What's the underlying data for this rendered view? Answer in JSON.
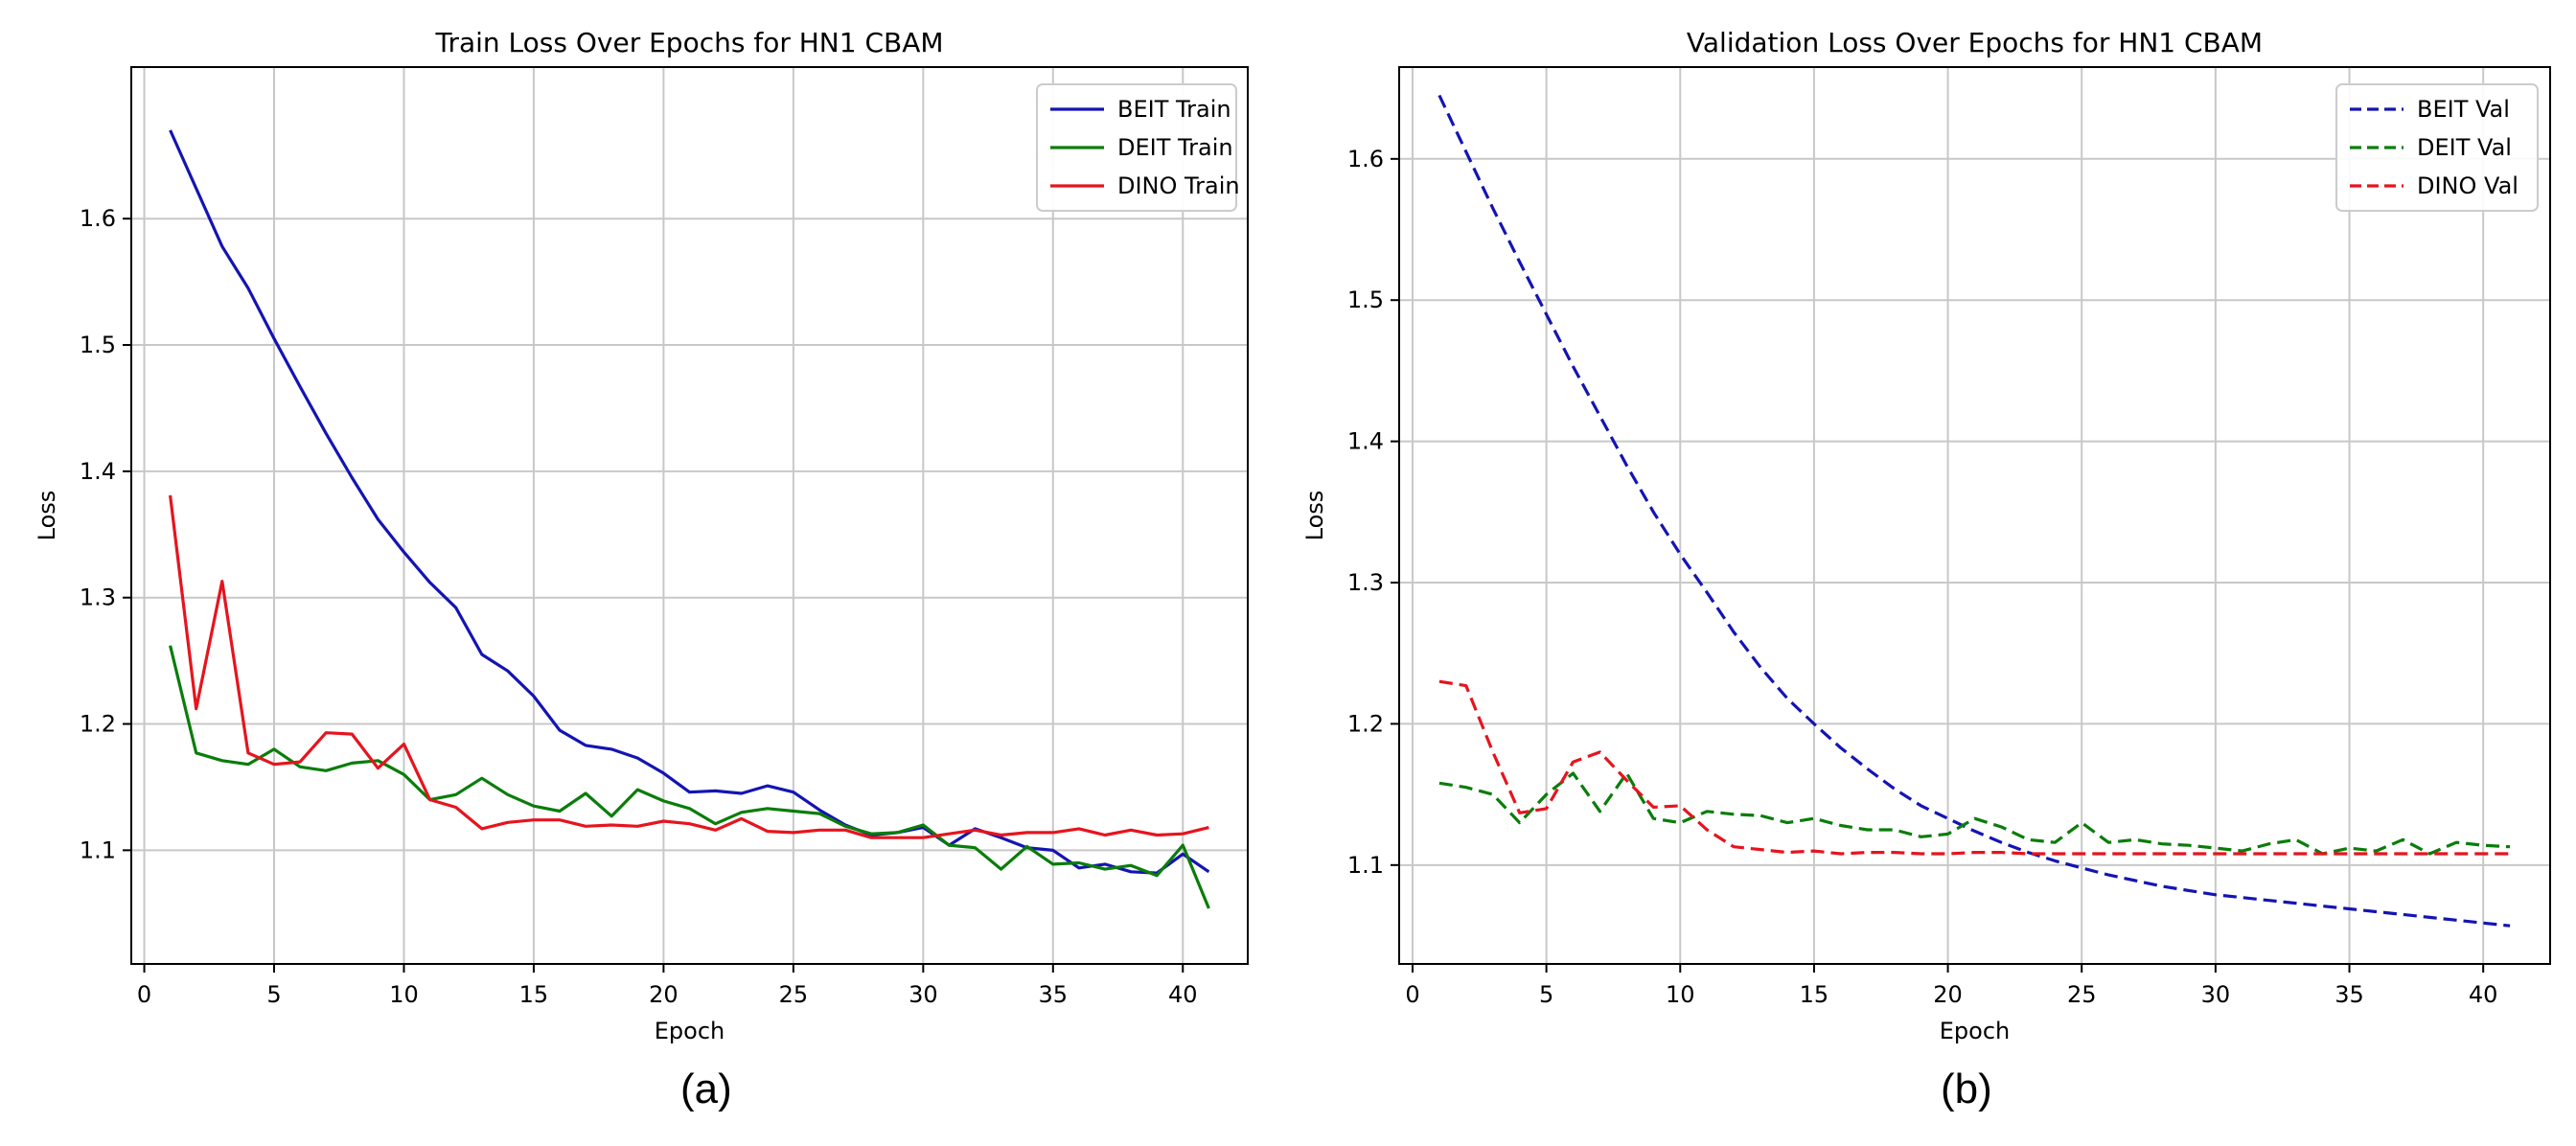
{
  "colors": {
    "blue": "#1414b4",
    "green": "#0a7d0a",
    "red": "#e6141e",
    "grid": "#c8c8c8",
    "axis": "#000000"
  },
  "panels": [
    {
      "caption": "(a)"
    },
    {
      "caption": "(b)"
    }
  ],
  "chart_data": [
    {
      "type": "line",
      "title": "Train Loss Over Epochs for HN1 CBAM",
      "xlabel": "Epoch",
      "ylabel": "Loss",
      "xlim": [
        -0.5,
        42.5
      ],
      "ylim": [
        1.01,
        1.72
      ],
      "xticks": [
        0,
        5,
        10,
        15,
        20,
        25,
        30,
        35,
        40
      ],
      "yticks": [
        1.1,
        1.2,
        1.3,
        1.4,
        1.5,
        1.6
      ],
      "ytick_labels": [
        "1.1",
        "1.2",
        "1.3",
        "1.4",
        "1.5",
        "1.6"
      ],
      "grid": true,
      "legend_position": "top-right",
      "x": [
        1,
        2,
        3,
        4,
        5,
        6,
        7,
        8,
        9,
        10,
        11,
        12,
        13,
        14,
        15,
        16,
        17,
        18,
        19,
        20,
        21,
        22,
        23,
        24,
        25,
        26,
        27,
        28,
        29,
        30,
        31,
        32,
        33,
        34,
        35,
        36,
        37,
        38,
        39,
        40,
        41
      ],
      "series": [
        {
          "name": "BEIT Train",
          "color": "blue",
          "dash": "solid",
          "values": [
            1.67,
            1.624,
            1.578,
            1.545,
            1.505,
            1.467,
            1.43,
            1.395,
            1.362,
            1.336,
            1.312,
            1.292,
            1.255,
            1.242,
            1.222,
            1.195,
            1.183,
            1.18,
            1.173,
            1.161,
            1.146,
            1.147,
            1.145,
            1.151,
            1.146,
            1.132,
            1.12,
            1.112,
            1.114,
            1.118,
            1.104,
            1.117,
            1.11,
            1.102,
            1.1,
            1.086,
            1.089,
            1.083,
            1.082,
            1.097,
            1.083
          ]
        },
        {
          "name": "DEIT Train",
          "color": "green",
          "dash": "solid",
          "values": [
            1.262,
            1.177,
            1.171,
            1.168,
            1.18,
            1.166,
            1.163,
            1.169,
            1.171,
            1.16,
            1.14,
            1.144,
            1.157,
            1.144,
            1.135,
            1.131,
            1.145,
            1.127,
            1.148,
            1.139,
            1.133,
            1.121,
            1.13,
            1.133,
            1.131,
            1.129,
            1.119,
            1.113,
            1.114,
            1.12,
            1.104,
            1.102,
            1.085,
            1.103,
            1.089,
            1.09,
            1.085,
            1.088,
            1.08,
            1.104,
            1.054
          ]
        },
        {
          "name": "DINO Train",
          "color": "red",
          "dash": "solid",
          "values": [
            1.381,
            1.212,
            1.313,
            1.177,
            1.168,
            1.17,
            1.193,
            1.192,
            1.165,
            1.184,
            1.14,
            1.134,
            1.117,
            1.122,
            1.124,
            1.124,
            1.119,
            1.12,
            1.119,
            1.123,
            1.121,
            1.116,
            1.125,
            1.115,
            1.114,
            1.116,
            1.116,
            1.11,
            1.11,
            1.11,
            1.113,
            1.116,
            1.112,
            1.114,
            1.114,
            1.117,
            1.112,
            1.116,
            1.112,
            1.113,
            1.118
          ]
        }
      ]
    },
    {
      "type": "line",
      "title": "Validation Loss Over Epochs for HN1 CBAM",
      "xlabel": "Epoch",
      "ylabel": "Loss",
      "xlim": [
        -0.5,
        42.5
      ],
      "ylim": [
        1.03,
        1.665
      ],
      "xticks": [
        0,
        5,
        10,
        15,
        20,
        25,
        30,
        35,
        40
      ],
      "yticks": [
        1.1,
        1.2,
        1.3,
        1.4,
        1.5,
        1.6
      ],
      "ytick_labels": [
        "1.1",
        "1.2",
        "1.3",
        "1.4",
        "1.5",
        "1.6"
      ],
      "grid": true,
      "legend_position": "top-right",
      "x": [
        1,
        2,
        3,
        4,
        5,
        6,
        7,
        8,
        9,
        10,
        11,
        12,
        13,
        14,
        15,
        16,
        17,
        18,
        19,
        20,
        21,
        22,
        23,
        24,
        25,
        26,
        27,
        28,
        29,
        30,
        31,
        32,
        33,
        34,
        35,
        36,
        37,
        38,
        39,
        40,
        41
      ],
      "series": [
        {
          "name": "BEIT Val",
          "color": "blue",
          "dash": "dashed",
          "values": [
            1.645,
            1.605,
            1.565,
            1.527,
            1.49,
            1.453,
            1.418,
            1.383,
            1.35,
            1.32,
            1.293,
            1.265,
            1.24,
            1.218,
            1.2,
            1.183,
            1.168,
            1.154,
            1.142,
            1.133,
            1.124,
            1.116,
            1.109,
            1.103,
            1.098,
            1.093,
            1.089,
            1.085,
            1.082,
            1.079,
            1.077,
            1.075,
            1.073,
            1.071,
            1.069,
            1.067,
            1.065,
            1.063,
            1.061,
            1.059,
            1.057
          ]
        },
        {
          "name": "DEIT Val",
          "color": "green",
          "dash": "dashed",
          "values": [
            1.158,
            1.155,
            1.15,
            1.13,
            1.15,
            1.165,
            1.138,
            1.165,
            1.133,
            1.13,
            1.138,
            1.136,
            1.135,
            1.13,
            1.133,
            1.128,
            1.125,
            1.125,
            1.12,
            1.122,
            1.133,
            1.127,
            1.118,
            1.116,
            1.13,
            1.116,
            1.118,
            1.115,
            1.114,
            1.112,
            1.11,
            1.115,
            1.118,
            1.108,
            1.112,
            1.11,
            1.118,
            1.108,
            1.116,
            1.114,
            1.113
          ]
        },
        {
          "name": "DINO Val",
          "color": "red",
          "dash": "dashed",
          "values": [
            1.23,
            1.227,
            1.18,
            1.137,
            1.14,
            1.173,
            1.18,
            1.16,
            1.141,
            1.142,
            1.125,
            1.113,
            1.111,
            1.109,
            1.11,
            1.108,
            1.109,
            1.109,
            1.108,
            1.108,
            1.109,
            1.109,
            1.108,
            1.108,
            1.108,
            1.108,
            1.108,
            1.108,
            1.108,
            1.108,
            1.108,
            1.108,
            1.108,
            1.108,
            1.108,
            1.108,
            1.108,
            1.108,
            1.108,
            1.108,
            1.108
          ]
        }
      ]
    }
  ]
}
